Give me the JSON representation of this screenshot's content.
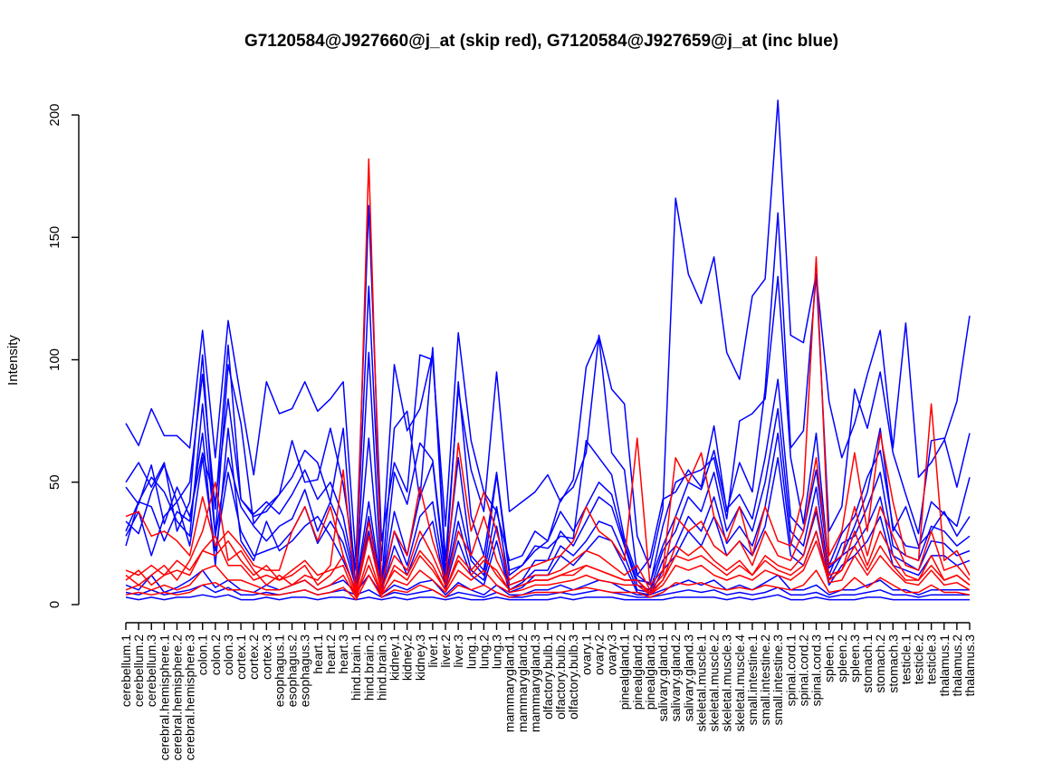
{
  "chart_data": {
    "type": "line",
    "title": "G7120584@J927660@j_at (skip red), G7120584@J927659@j_at (inc blue)",
    "xlabel": "",
    "ylabel": "Intensity",
    "ylim": [
      0,
      200
    ],
    "yticks": [
      0,
      50,
      100,
      150,
      200
    ],
    "colors": {
      "skip": "#ff0000",
      "inc": "#0000ff"
    },
    "categories": [
      "cerebellum.1",
      "cerebellum.2",
      "cerebellum.3",
      "cerebral.hemisphere.1",
      "cerebral.hemisphere.2",
      "cerebral.hemisphere.3",
      "colon.1",
      "colon.2",
      "colon.3",
      "cortex.1",
      "cortex.2",
      "cortex.3",
      "esophagus.1",
      "esophagus.2",
      "esophagus.3",
      "heart.1",
      "heart.2",
      "heart.3",
      "hind.brain.1",
      "hind.brain.2",
      "hind.brain.3",
      "kidney.1",
      "kidney.2",
      "kidney.3",
      "liver.1",
      "liver.2",
      "liver.3",
      "lung.1",
      "lung.2",
      "lung.3",
      "mammarygland.1",
      "mammarygland.2",
      "mammarygland.3",
      "olfactory.bulb.1",
      "olfactory.bulb.2",
      "olfactory.bulb.3",
      "ovary.1",
      "ovary.2",
      "ovary.3",
      "pinealgland.1",
      "pinealgland.2",
      "pinealgland.3",
      "salivary.gland.1",
      "salivary.gland.2",
      "salivary.gland.3",
      "skeletal.muscle.1",
      "skeletal.muscle.2",
      "skeletal.muscle.3",
      "skeletal.muscle.4",
      "small.intestine.1",
      "small.intestine.2",
      "small.intestine.3",
      "spinal.cord.1",
      "spinal.cord.2",
      "spinal.cord.3",
      "spleen.1",
      "spleen.2",
      "spleen.3",
      "stomach.1",
      "stomach.2",
      "stomach.3",
      "testicle.1",
      "testicle.2",
      "testicle.3",
      "thalamus.1",
      "thalamus.2",
      "thalamus.3"
    ],
    "series": [
      {
        "name": "inc blue 1",
        "group": "inc",
        "values": [
          74,
          65,
          80,
          69,
          69,
          64,
          112,
          60,
          116,
          84,
          53,
          91,
          78,
          80,
          91,
          79,
          84,
          91,
          18,
          163,
          26,
          58,
          46,
          102,
          100,
          32,
          111,
          67,
          46,
          38,
          18,
          20,
          30,
          26,
          43,
          48,
          62,
          110,
          88,
          82,
          28,
          15,
          39,
          166,
          135,
          123,
          142,
          103,
          92,
          126,
          133,
          206,
          110,
          107,
          135,
          83,
          60,
          74,
          94,
          112,
          64,
          115,
          52,
          58,
          67,
          83,
          118
        ]
      },
      {
        "name": "inc blue 2",
        "group": "inc",
        "values": [
          50,
          58,
          48,
          58,
          30,
          42,
          102,
          28,
          98,
          74,
          33,
          40,
          45,
          67,
          50,
          51,
          72,
          49,
          14,
          130,
          18,
          98,
          71,
          80,
          103,
          18,
          88,
          55,
          38,
          95,
          38,
          42,
          46,
          53,
          42,
          51,
          97,
          109,
          62,
          55,
          12,
          19,
          43,
          46,
          55,
          48,
          73,
          38,
          58,
          46,
          88,
          160,
          64,
          71,
          135,
          30,
          40,
          88,
          72,
          95,
          62,
          45,
          29,
          67,
          68,
          48,
          70
        ]
      },
      {
        "name": "inc blue 3",
        "group": "inc",
        "values": [
          34,
          29,
          46,
          57,
          42,
          50,
          94,
          39,
          106,
          43,
          36,
          38,
          45,
          52,
          63,
          58,
          42,
          72,
          6,
          103,
          9,
          72,
          79,
          43,
          105,
          12,
          91,
          36,
          20,
          54,
          14,
          16,
          24,
          23,
          28,
          27,
          67,
          60,
          53,
          27,
          12,
          8,
          32,
          50,
          53,
          55,
          60,
          35,
          75,
          78,
          84,
          134,
          60,
          33,
          70,
          15,
          20,
          32,
          46,
          72,
          30,
          40,
          24,
          30,
          38,
          28,
          36
        ]
      },
      {
        "name": "inc blue 4",
        "group": "inc",
        "values": [
          48,
          41,
          57,
          33,
          48,
          36,
          62,
          42,
          84,
          43,
          37,
          42,
          37,
          45,
          55,
          43,
          50,
          36,
          9,
          68,
          6,
          54,
          41,
          66,
          59,
          13,
          60,
          20,
          14,
          53,
          12,
          16,
          22,
          26,
          38,
          30,
          40,
          50,
          45,
          25,
          10,
          9,
          24,
          36,
          50,
          47,
          63,
          39,
          45,
          35,
          60,
          92,
          36,
          30,
          55,
          16,
          29,
          36,
          52,
          63,
          32,
          24,
          23,
          42,
          37,
          32,
          52
        ]
      },
      {
        "name": "inc blue 5",
        "group": "inc",
        "values": [
          24,
          42,
          52,
          46,
          34,
          28,
          82,
          28,
          60,
          40,
          32,
          26,
          32,
          35,
          47,
          30,
          42,
          30,
          8,
          42,
          7,
          38,
          20,
          44,
          58,
          10,
          42,
          18,
          12,
          40,
          8,
          10,
          18,
          18,
          30,
          24,
          34,
          44,
          40,
          24,
          8,
          6,
          22,
          30,
          44,
          38,
          54,
          30,
          40,
          30,
          50,
          80,
          30,
          24,
          48,
          12,
          25,
          28,
          40,
          54,
          24,
          20,
          18,
          32,
          30,
          24,
          28
        ]
      },
      {
        "name": "inc blue 6",
        "group": "inc",
        "values": [
          28,
          38,
          20,
          36,
          42,
          24,
          60,
          22,
          54,
          30,
          20,
          22,
          24,
          30,
          40,
          25,
          34,
          25,
          7,
          36,
          6,
          30,
          16,
          36,
          42,
          9,
          34,
          14,
          10,
          32,
          6,
          9,
          14,
          14,
          24,
          20,
          26,
          34,
          32,
          20,
          6,
          5,
          18,
          24,
          36,
          30,
          44,
          25,
          32,
          24,
          40,
          70,
          25,
          20,
          38,
          10,
          20,
          24,
          32,
          44,
          20,
          17,
          14,
          26,
          25,
          20,
          22
        ]
      },
      {
        "name": "inc blue 7",
        "group": "inc",
        "values": [
          30,
          42,
          40,
          26,
          38,
          34,
          70,
          16,
          72,
          26,
          18,
          34,
          22,
          26,
          32,
          36,
          28,
          18,
          6,
          30,
          5,
          24,
          12,
          26,
          34,
          7,
          26,
          12,
          8,
          26,
          5,
          7,
          12,
          12,
          20,
          16,
          22,
          28,
          26,
          16,
          5,
          4,
          14,
          20,
          30,
          24,
          36,
          20,
          26,
          20,
          32,
          60,
          20,
          16,
          30,
          8,
          16,
          20,
          26,
          36,
          16,
          14,
          12,
          20,
          20,
          16,
          18
        ]
      },
      {
        "name": "inc blue 8",
        "group": "inc",
        "values": [
          5,
          4,
          6,
          4,
          5,
          6,
          8,
          5,
          7,
          4,
          4,
          5,
          4,
          5,
          6,
          4,
          5,
          6,
          4,
          6,
          3,
          5,
          4,
          5,
          6,
          3,
          5,
          4,
          3,
          5,
          3,
          3,
          4,
          4,
          5,
          4,
          5,
          6,
          5,
          4,
          3,
          3,
          4,
          5,
          6,
          5,
          6,
          4,
          5,
          4,
          5,
          7,
          4,
          4,
          5,
          3,
          4,
          4,
          5,
          6,
          4,
          4,
          3,
          4,
          4,
          4,
          4
        ]
      },
      {
        "name": "inc blue 9",
        "group": "inc",
        "values": [
          3,
          2,
          3,
          2,
          3,
          3,
          4,
          3,
          4,
          2,
          2,
          3,
          2,
          3,
          3,
          2,
          3,
          3,
          2,
          3,
          2,
          3,
          2,
          3,
          3,
          2,
          3,
          2,
          2,
          3,
          2,
          2,
          2,
          2,
          3,
          2,
          3,
          3,
          3,
          2,
          2,
          2,
          2,
          3,
          3,
          3,
          3,
          2,
          3,
          2,
          3,
          4,
          2,
          2,
          3,
          2,
          2,
          2,
          3,
          3,
          2,
          2,
          2,
          2,
          2,
          2,
          2
        ]
      },
      {
        "name": "inc blue 10",
        "group": "inc",
        "values": [
          8,
          6,
          12,
          5,
          7,
          10,
          14,
          7,
          10,
          6,
          5,
          8,
          6,
          8,
          10,
          6,
          8,
          10,
          5,
          12,
          4,
          8,
          6,
          9,
          10,
          4,
          9,
          6,
          4,
          8,
          4,
          4,
          6,
          6,
          8,
          6,
          8,
          10,
          9,
          6,
          4,
          4,
          6,
          8,
          10,
          8,
          10,
          6,
          8,
          6,
          9,
          12,
          6,
          6,
          8,
          4,
          6,
          6,
          8,
          10,
          6,
          6,
          4,
          6,
          6,
          6,
          6
        ]
      },
      {
        "name": "skip red 1",
        "group": "skip",
        "values": [
          36,
          38,
          28,
          30,
          26,
          20,
          44,
          24,
          30,
          24,
          16,
          14,
          14,
          30,
          40,
          26,
          40,
          20,
          5,
          182,
          8,
          30,
          20,
          48,
          26,
          10,
          66,
          30,
          46,
          30,
          10,
          14,
          16,
          18,
          20,
          26,
          40,
          30,
          26,
          18,
          68,
          8,
          14,
          60,
          50,
          62,
          36,
          26,
          40,
          20,
          40,
          26,
          24,
          45,
          142,
          20,
          30,
          62,
          30,
          70,
          42,
          20,
          18,
          82,
          18,
          22,
          12
        ]
      },
      {
        "name": "skip red 2",
        "group": "skip",
        "values": [
          12,
          8,
          12,
          16,
          10,
          18,
          30,
          50,
          18,
          22,
          14,
          8,
          12,
          8,
          12,
          10,
          16,
          55,
          4,
          34,
          6,
          20,
          14,
          30,
          20,
          8,
          30,
          20,
          36,
          18,
          8,
          10,
          12,
          12,
          14,
          18,
          22,
          20,
          16,
          12,
          16,
          6,
          12,
          36,
          30,
          34,
          24,
          20,
          26,
          16,
          30,
          20,
          18,
          30,
          60,
          16,
          20,
          40,
          20,
          40,
          28,
          16,
          14,
          30,
          14,
          16,
          10
        ]
      },
      {
        "name": "skip red 3",
        "group": "skip",
        "values": [
          10,
          14,
          8,
          12,
          14,
          12,
          22,
          28,
          16,
          16,
          10,
          12,
          10,
          12,
          16,
          8,
          12,
          20,
          4,
          28,
          5,
          14,
          10,
          20,
          14,
          6,
          20,
          14,
          20,
          12,
          6,
          8,
          10,
          10,
          12,
          14,
          16,
          14,
          12,
          10,
          10,
          5,
          10,
          24,
          20,
          24,
          18,
          14,
          18,
          12,
          20,
          16,
          14,
          20,
          40,
          12,
          14,
          30,
          16,
          30,
          20,
          12,
          10,
          20,
          10,
          12,
          8
        ]
      },
      {
        "name": "skip red 4",
        "group": "skip",
        "values": [
          6,
          8,
          6,
          8,
          6,
          8,
          14,
          16,
          10,
          10,
          8,
          6,
          6,
          8,
          10,
          6,
          8,
          12,
          3,
          20,
          4,
          10,
          8,
          14,
          10,
          5,
          14,
          10,
          14,
          8,
          5,
          6,
          8,
          8,
          9,
          10,
          12,
          10,
          9,
          8,
          8,
          4,
          8,
          16,
          14,
          16,
          12,
          10,
          12,
          10,
          14,
          12,
          10,
          14,
          26,
          9,
          10,
          20,
          12,
          20,
          14,
          9,
          8,
          14,
          8,
          9,
          6
        ]
      },
      {
        "name": "skip red 5",
        "group": "skip",
        "values": [
          4,
          5,
          4,
          5,
          4,
          5,
          8,
          9,
          6,
          6,
          5,
          4,
          4,
          5,
          6,
          4,
          5,
          7,
          2,
          12,
          3,
          6,
          5,
          8,
          6,
          3,
          8,
          6,
          8,
          5,
          3,
          4,
          5,
          5,
          5,
          6,
          7,
          6,
          5,
          5,
          5,
          3,
          5,
          9,
          8,
          9,
          7,
          6,
          7,
          6,
          8,
          7,
          6,
          8,
          14,
          5,
          6,
          11,
          7,
          11,
          8,
          5,
          5,
          8,
          5,
          5,
          4
        ]
      },
      {
        "name": "skip red 6",
        "group": "skip",
        "values": [
          14,
          12,
          16,
          12,
          18,
          14,
          22,
          20,
          26,
          18,
          12,
          16,
          10,
          14,
          18,
          12,
          14,
          16,
          3,
          16,
          4,
          16,
          12,
          22,
          16,
          6,
          18,
          12,
          18,
          14,
          6,
          8,
          10,
          10,
          12,
          12,
          16,
          14,
          12,
          10,
          10,
          4,
          10,
          20,
          18,
          20,
          16,
          12,
          16,
          12,
          18,
          14,
          12,
          16,
          30,
          10,
          14,
          24,
          14,
          24,
          16,
          10,
          10,
          16,
          10,
          12,
          8
        ]
      }
    ]
  }
}
